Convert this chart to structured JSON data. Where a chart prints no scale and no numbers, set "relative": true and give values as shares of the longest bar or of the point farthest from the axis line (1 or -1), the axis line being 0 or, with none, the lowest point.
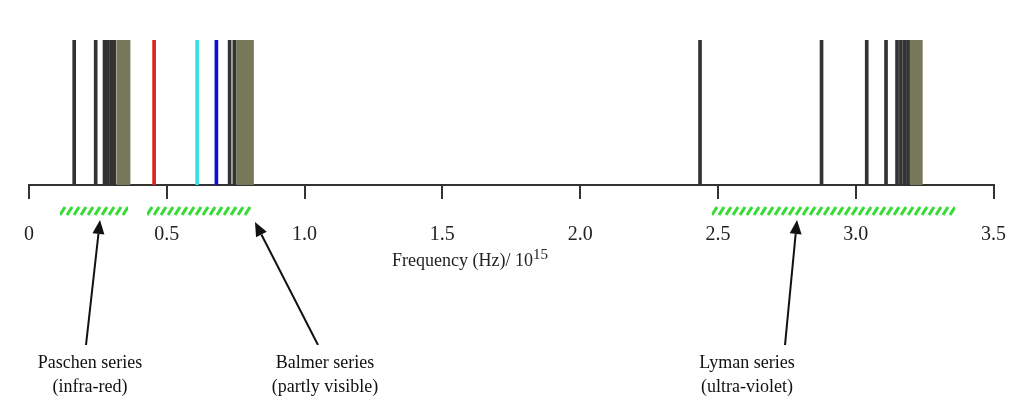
{
  "chart_data": {
    "type": "bar",
    "relative": true,
    "xlabel": "Frequency (Hz)/ 10$^{15}$",
    "x": [
      0.164,
      0.242,
      0.274,
      0.286,
      0.298,
      0.309,
      0.454,
      0.61,
      0.68,
      0.728,
      0.745,
      2.435,
      2.876,
      3.04,
      3.11,
      3.15,
      3.164,
      3.178,
      3.19
    ],
    "values": [
      1,
      1,
      1,
      1,
      1,
      1,
      1,
      1,
      1,
      1,
      1,
      1,
      1,
      1,
      1,
      1,
      1,
      1,
      1
    ],
    "colors": [
      "#333333",
      "#333333",
      "#333333",
      "#333333",
      "#333333",
      "#333333",
      "#e02020",
      "#33e0e8",
      "#1010d0",
      "#333333",
      "#333333",
      "#333333",
      "#333333",
      "#333333",
      "#333333",
      "#333333",
      "#333333",
      "#333333",
      "#333333"
    ],
    "xlim": [
      0,
      3.5
    ],
    "xticks": [
      0,
      {
        "value": 0.5,
        "label": "0.5"
      },
      {
        "value": 1,
        "label": "1.0"
      },
      1.5,
      {
        "value": 2,
        "label": "2.0"
      },
      2.5,
      {
        "value": 3,
        "label": "3.0"
      },
      3.5
    ],
    "bands": [
      {
        "axis": "x",
        "from": 0.317,
        "to": 0.368,
        "color": "#77775a"
      },
      {
        "axis": "x",
        "from": 0.752,
        "to": 0.816,
        "color": "#77775a"
      },
      {
        "axis": "x",
        "from": 3.197,
        "to": 3.243,
        "color": "#77775a"
      }
    ],
    "annotations": [
      "Paschen series\n(infra-red)",
      "Balmer series\n(partly visible)",
      "Lyman series\n(ultra-violet)"
    ],
    "grid": false,
    "legend": false
  }
}
